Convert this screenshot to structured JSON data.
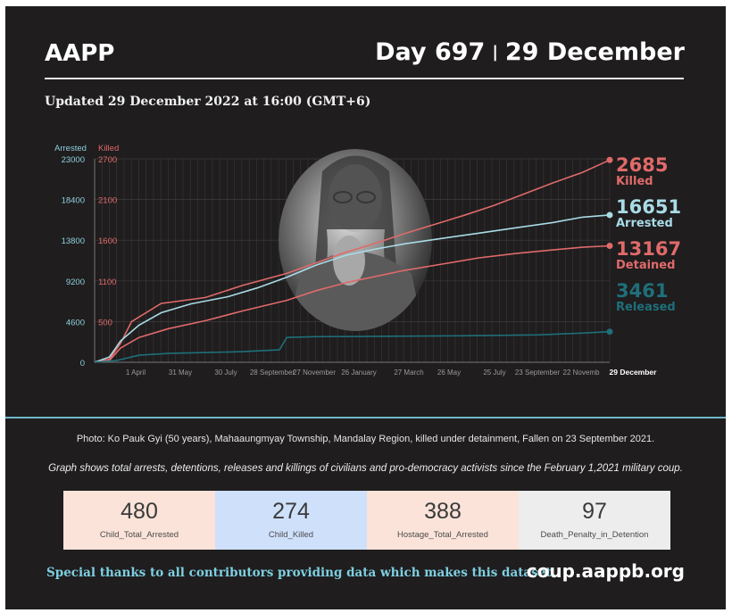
{
  "header": {
    "brand": "AAPP",
    "day": "Day 697",
    "separator": "|",
    "date": "29 December",
    "updated": "Updated 29 December 2022 at 16:00 (GMT+6)"
  },
  "colors": {
    "background": "#1f1d1e",
    "killed": "#e06a6a",
    "arrested": "#a9dbe6",
    "detained": "#e06a6a",
    "released": "#1f6f7a",
    "accent_rule": "#6fb7c7"
  },
  "chart_data": {
    "type": "line",
    "left_axis": {
      "title": "Arrested",
      "ticks": [
        "23000",
        "18400",
        "13800",
        "9200",
        "4600",
        "0"
      ],
      "range": [
        0,
        23000
      ]
    },
    "right_axis": {
      "title": "Killed",
      "ticks": [
        "2700",
        "2100",
        "1600",
        "1100",
        "500"
      ],
      "range": [
        0,
        2700
      ]
    },
    "x_tick_labels": [
      "1 April",
      "31 May",
      "30 July",
      "28 September",
      "27 November",
      "26 January",
      "27 March",
      "26 May",
      "25 July",
      "23 September",
      "22 Novemb",
      "29 December"
    ],
    "x_range_days": [
      0,
      697
    ],
    "series": [
      {
        "key": "killed",
        "name": "Killed",
        "end_value": "2685",
        "axis": "right",
        "points": [
          [
            0,
            0
          ],
          [
            20,
            40
          ],
          [
            35,
            250
          ],
          [
            50,
            540
          ],
          [
            60,
            600
          ],
          [
            90,
            780
          ],
          [
            150,
            860
          ],
          [
            200,
            1020
          ],
          [
            260,
            1180
          ],
          [
            300,
            1320
          ],
          [
            340,
            1460
          ],
          [
            380,
            1580
          ],
          [
            420,
            1710
          ],
          [
            460,
            1830
          ],
          [
            500,
            1950
          ],
          [
            540,
            2080
          ],
          [
            580,
            2230
          ],
          [
            620,
            2380
          ],
          [
            660,
            2520
          ],
          [
            697,
            2685
          ]
        ]
      },
      {
        "key": "arrested",
        "name": "Arrested",
        "end_value": "16651",
        "axis": "left",
        "points": [
          [
            0,
            0
          ],
          [
            20,
            600
          ],
          [
            35,
            2400
          ],
          [
            60,
            4200
          ],
          [
            90,
            5600
          ],
          [
            130,
            6600
          ],
          [
            180,
            7400
          ],
          [
            220,
            8400
          ],
          [
            260,
            9600
          ],
          [
            300,
            11000
          ],
          [
            340,
            12100
          ],
          [
            380,
            12800
          ],
          [
            420,
            13400
          ],
          [
            470,
            14000
          ],
          [
            520,
            14600
          ],
          [
            570,
            15200
          ],
          [
            620,
            15800
          ],
          [
            660,
            16400
          ],
          [
            697,
            16651
          ]
        ]
      },
      {
        "key": "detained",
        "name": "Detained",
        "end_value": "13167",
        "axis": "left",
        "points": [
          [
            0,
            0
          ],
          [
            20,
            200
          ],
          [
            35,
            1600
          ],
          [
            60,
            2800
          ],
          [
            100,
            3800
          ],
          [
            150,
            4700
          ],
          [
            200,
            5800
          ],
          [
            260,
            7000
          ],
          [
            300,
            8100
          ],
          [
            340,
            9000
          ],
          [
            380,
            9700
          ],
          [
            420,
            10400
          ],
          [
            470,
            11100
          ],
          [
            520,
            11800
          ],
          [
            570,
            12300
          ],
          [
            620,
            12700
          ],
          [
            660,
            13000
          ],
          [
            697,
            13167
          ]
        ]
      },
      {
        "key": "released",
        "name": "Released",
        "end_value": "3461",
        "axis": "left",
        "points": [
          [
            0,
            0
          ],
          [
            30,
            200
          ],
          [
            60,
            800
          ],
          [
            100,
            1000
          ],
          [
            150,
            1100
          ],
          [
            200,
            1200
          ],
          [
            250,
            1400
          ],
          [
            260,
            2800
          ],
          [
            300,
            2900
          ],
          [
            400,
            2950
          ],
          [
            500,
            3000
          ],
          [
            600,
            3100
          ],
          [
            660,
            3300
          ],
          [
            697,
            3461
          ]
        ]
      }
    ]
  },
  "footer": {
    "photo_caption": "Photo: Ko Pauk Gyi  (50 years),  Mahaaungmyay Township, Mandalay Region, killed under detainment, Fallen on 23 September 2021.",
    "graph_note": "Graph shows total arrests, detentions, releases and killings of civilians and pro-democracy activists since the February 1,2021 military coup.",
    "thanks": "Special thanks to all contributors providing data which makes this dataset.",
    "site": "coup.aappb.org"
  },
  "stats": [
    {
      "value": "480",
      "label": "Child_Total_Arrested",
      "bg": "#fbe3d9"
    },
    {
      "value": "274",
      "label": "Child_Killed",
      "bg": "#cfe0fb"
    },
    {
      "value": "388",
      "label": "Hostage_Total_Arrested",
      "bg": "#fbe3d9"
    },
    {
      "value": "97",
      "label": "Death_Penalty_in_Detention",
      "bg": "#ededed"
    }
  ]
}
